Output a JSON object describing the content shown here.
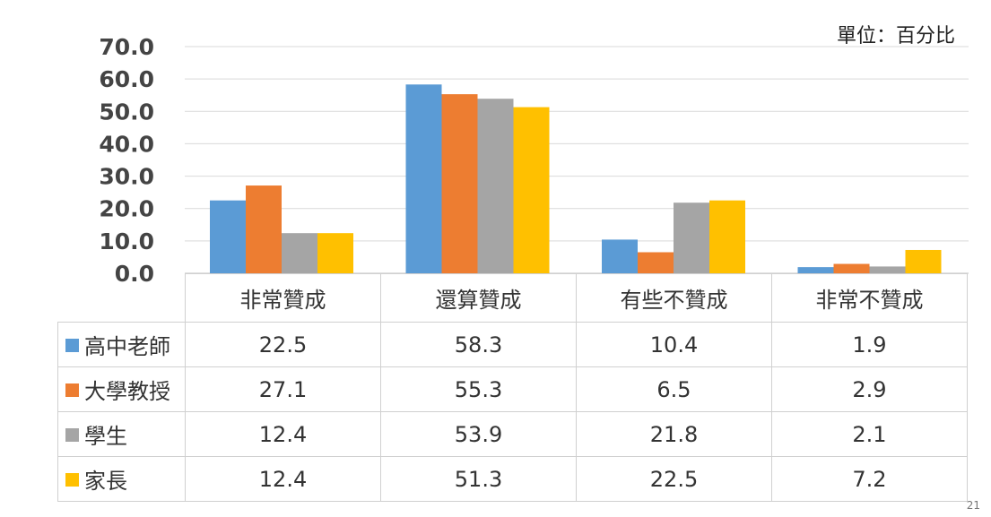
{
  "unit_label": "單位：百分比",
  "page_number": "21",
  "colors": {
    "grid": "#d9d9d9",
    "axis": "#bfbfbf"
  },
  "chart_data": {
    "type": "bar",
    "categories": [
      "非常贊成",
      "還算贊成",
      "有些不贊成",
      "非常不贊成"
    ],
    "series": [
      {
        "name": "高中老師",
        "color": "#5b9bd5",
        "values": [
          22.5,
          58.3,
          10.4,
          1.9
        ],
        "labels": [
          "22.5",
          "58.3",
          "10.4",
          "1.9"
        ]
      },
      {
        "name": "大學教授",
        "color": "#ed7d31",
        "values": [
          27.1,
          55.3,
          6.5,
          2.9
        ],
        "labels": [
          "27.1",
          "55.3",
          "6.5",
          "2.9"
        ]
      },
      {
        "name": "學生",
        "color": "#a5a5a5",
        "values": [
          12.4,
          53.9,
          21.8,
          2.1
        ],
        "labels": [
          "12.4",
          "53.9",
          "21.8",
          "2.1"
        ]
      },
      {
        "name": "家長",
        "color": "#ffc000",
        "values": [
          12.4,
          51.3,
          22.5,
          7.2
        ],
        "labels": [
          "12.4",
          "51.3",
          "22.5",
          "7.2"
        ]
      }
    ],
    "ylim": [
      0,
      70
    ],
    "yticks": [
      "0.0",
      "10.0",
      "20.0",
      "30.0",
      "40.0",
      "50.0",
      "60.0",
      "70.0"
    ],
    "grid": true,
    "legend": "data-table"
  }
}
